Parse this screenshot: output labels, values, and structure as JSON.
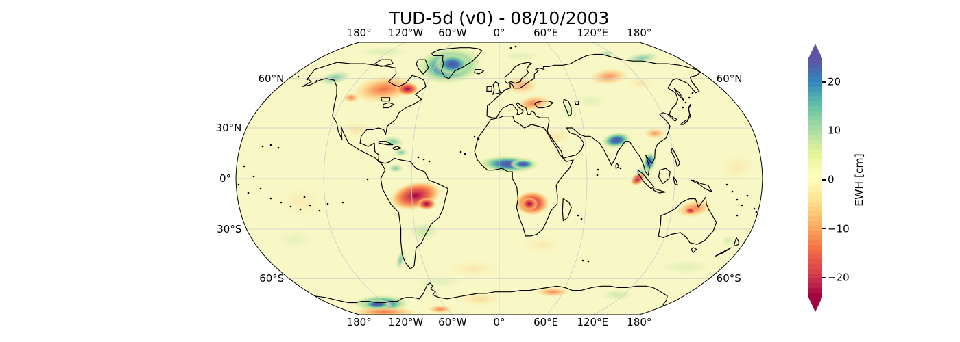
{
  "title": "TUD-5d (v0) - 08/10/2003",
  "map": {
    "projection": "Robinson",
    "base_color": "#f8f8c6",
    "graticule_color": "#cccccc",
    "lon_labels": [
      "180°",
      "120°W",
      "60°W",
      "0°",
      "60°E",
      "120°E",
      "180°"
    ],
    "lon_values": [
      -180,
      -120,
      -60,
      0,
      60,
      120,
      180
    ],
    "lat_labels_left": [
      "60°N",
      "30°N",
      "0°",
      "30°S",
      "60°S"
    ],
    "lat_values_left": [
      60,
      30,
      0,
      -30,
      -60
    ],
    "lat_labels_right": [
      "60°N",
      "60°S"
    ],
    "lat_values_right": [
      60,
      -60
    ]
  },
  "colorbar": {
    "label": "EWH [cm]",
    "tick_labels": [
      "20",
      "10",
      "0",
      "−10",
      "−20"
    ],
    "tick_values": [
      20,
      10,
      0,
      -10,
      -20
    ],
    "vmin": -25,
    "vmax": 25,
    "levels": 50,
    "extend": "both",
    "spectral_r_anchors": [
      "#5e4fa2",
      "#3288bd",
      "#66c2a5",
      "#abdda4",
      "#e6f598",
      "#ffffbf",
      "#fee08b",
      "#fdae61",
      "#f46d43",
      "#d53e4f",
      "#9e0142"
    ]
  },
  "chart_data": {
    "type": "heatmap",
    "title": "TUD-5d (v0) - 08/10/2003",
    "variable": "EWH [cm]",
    "projection": "Robinson",
    "colormap": "Spectral_r (discrete)",
    "value_range": [
      -25,
      25
    ],
    "graticule": {
      "lat_step_deg": 30,
      "lon_step_deg": 60
    },
    "anomalies": [
      {
        "name": "greenland",
        "lon": -42,
        "lat": 70,
        "value_cm": 25
      },
      {
        "name": "alaska-south-coast",
        "lon": -140,
        "lat": 60,
        "value_cm": 10
      },
      {
        "name": "central-canada",
        "lon": -100,
        "lat": 57,
        "value_cm": -15
      },
      {
        "name": "quebec-labrador",
        "lon": -72,
        "lat": 57,
        "value_cm": -22
      },
      {
        "name": "gulf-of-mexico-coast",
        "lon": -90,
        "lat": 25,
        "value_cm": 8
      },
      {
        "name": "venezuela-colombia",
        "lon": -70,
        "lat": 5,
        "value_cm": 8
      },
      {
        "name": "amazon-basin",
        "lon": -58,
        "lat": -8,
        "value_cm": -24
      },
      {
        "name": "southern-brazil",
        "lon": -52,
        "lat": -25,
        "value_cm": 6
      },
      {
        "name": "patagonia-andes-coast",
        "lon": -73,
        "lat": -47,
        "value_cm": 9
      },
      {
        "name": "sahel-central-africa",
        "lon": 10,
        "lat": 9,
        "value_cm": 22
      },
      {
        "name": "southern-africa-congo",
        "lon": 22,
        "lat": -12,
        "value_cm": -23
      },
      {
        "name": "scandinavia-east-europe",
        "lon": 20,
        "lat": 60,
        "value_cm": -7
      },
      {
        "name": "black-sea-ukraine",
        "lon": 30,
        "lat": 47,
        "value_cm": -10
      },
      {
        "name": "central-siberia",
        "lon": 75,
        "lat": 62,
        "value_cm": -8
      },
      {
        "name": "northeast-siberia-coast",
        "lon": 140,
        "lat": 74,
        "value_cm": 8
      },
      {
        "name": "north-india-ganges",
        "lon": 80,
        "lat": 25,
        "value_cm": 25
      },
      {
        "name": "indochina",
        "lon": 102,
        "lat": 15,
        "value_cm": 22
      },
      {
        "name": "sumatra",
        "lon": 98,
        "lat": 0,
        "value_cm": -15
      },
      {
        "name": "east-china",
        "lon": 112,
        "lat": 33,
        "value_cm": -7
      },
      {
        "name": "northern-australia",
        "lon": 132,
        "lat": -20,
        "value_cm": -14
      },
      {
        "name": "west-antarctica",
        "lon": -110,
        "lat": -77,
        "value_cm": 25
      },
      {
        "name": "amundsen-coast-band",
        "lon": -120,
        "lat": -81,
        "value_cm": -12
      },
      {
        "name": "weddell-sea",
        "lon": -40,
        "lat": -72,
        "value_cm": -6
      },
      {
        "name": "east-antarctica-coast",
        "lon": 35,
        "lat": -70,
        "value_cm": -8
      }
    ]
  }
}
